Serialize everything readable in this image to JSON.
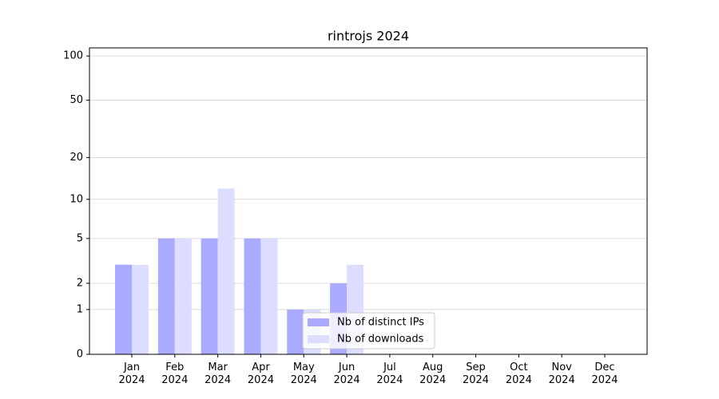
{
  "chart_data": {
    "type": "bar",
    "title": "rintrojs 2024",
    "categories": [
      "Jan 2024",
      "Feb 2024",
      "Mar 2024",
      "Apr 2024",
      "May 2024",
      "Jun 2024",
      "Jul 2024",
      "Aug 2024",
      "Sep 2024",
      "Oct 2024",
      "Nov 2024",
      "Dec 2024"
    ],
    "series": [
      {
        "name": "Nb of distinct IPs",
        "color": "#aaaaff",
        "values": [
          3,
          5,
          5,
          5,
          1,
          2,
          0,
          0,
          0,
          0,
          0,
          0
        ]
      },
      {
        "name": "Nb of downloads",
        "color": "#ddddff",
        "values": [
          3,
          5,
          12,
          5,
          1,
          3,
          0,
          0,
          0,
          0,
          0,
          0
        ]
      }
    ],
    "yscale": "log1p",
    "ylim": [
      0,
      113.5
    ],
    "yticks": [
      0,
      1,
      2,
      5,
      10,
      20,
      50,
      100
    ],
    "grid": true,
    "legend": "lower center"
  }
}
